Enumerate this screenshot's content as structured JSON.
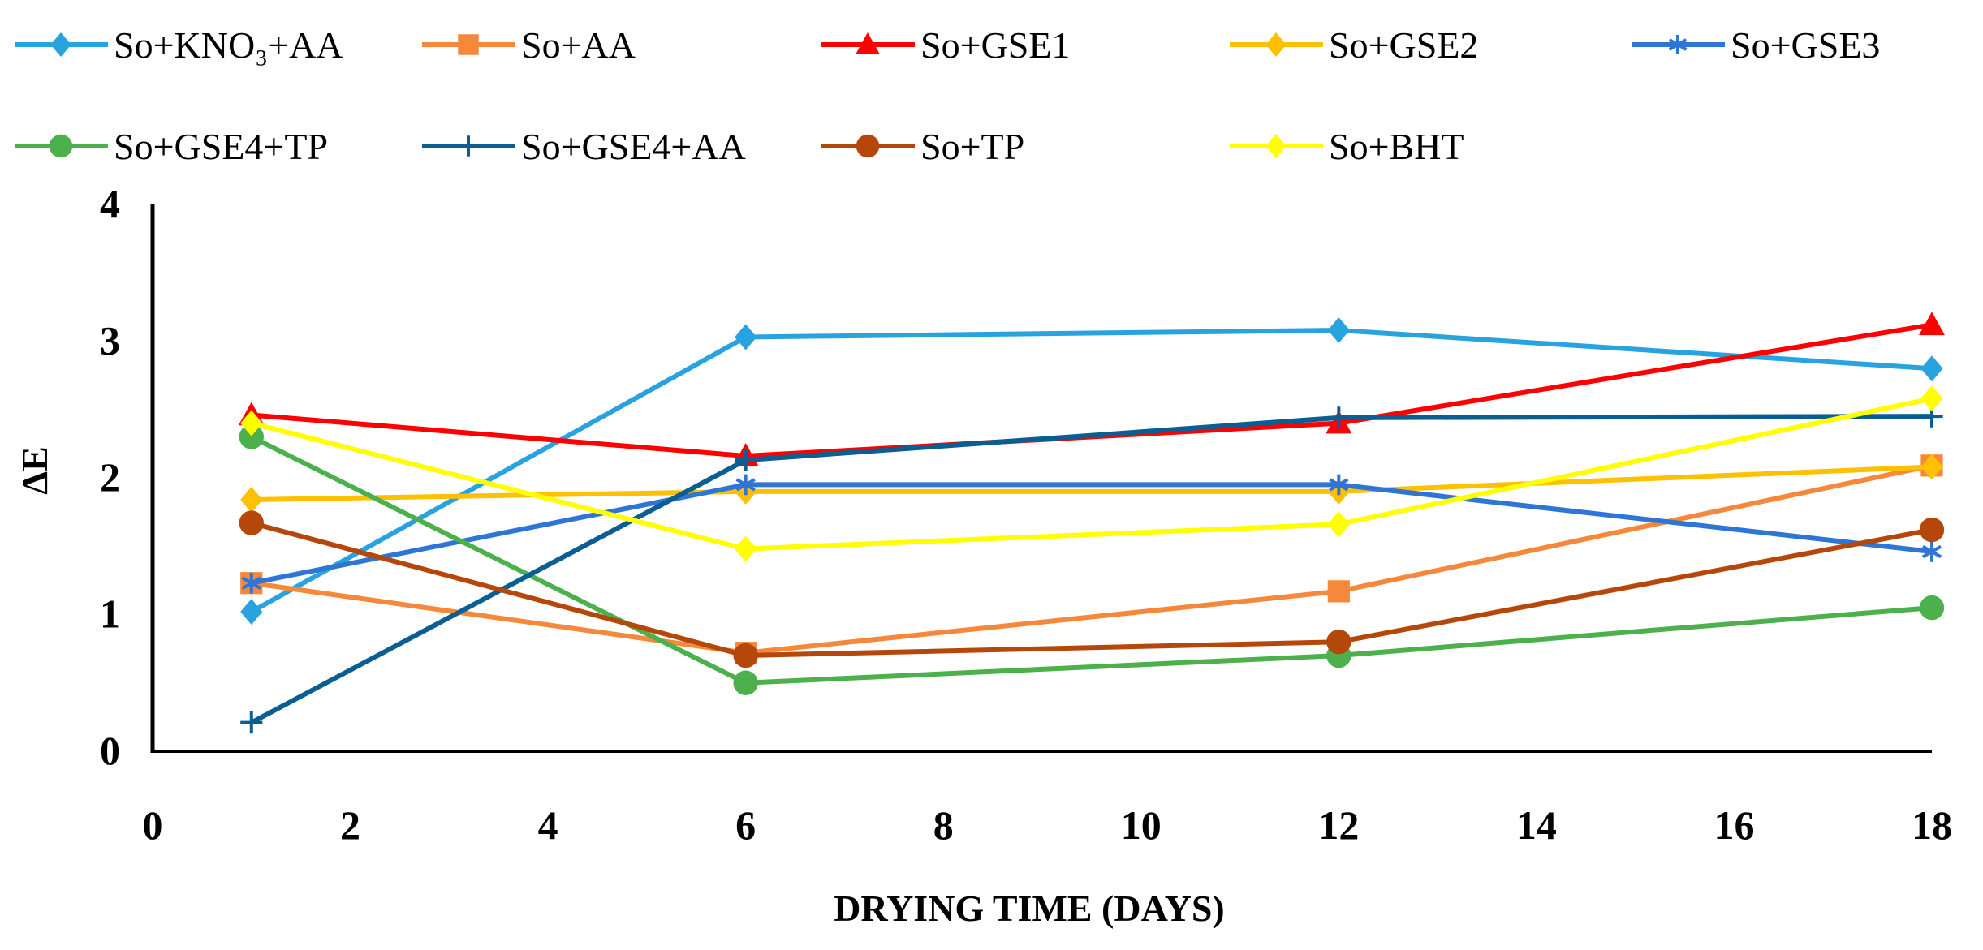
{
  "chart_data": {
    "type": "line",
    "title": "",
    "xlabel": "DRYING TIME (DAYS)",
    "ylabel": "ΔE",
    "xlim": [
      0,
      18
    ],
    "ylim": [
      0,
      4
    ],
    "xticks": [
      0,
      2,
      4,
      6,
      8,
      10,
      12,
      14,
      16,
      18
    ],
    "yticks": [
      0,
      1,
      2,
      3,
      4
    ],
    "grid": false,
    "legend_position": "top",
    "x": [
      1,
      6,
      12,
      18
    ],
    "series": [
      {
        "name": "So+KNO3+AA",
        "display_name": "So+KNO₃+AA",
        "color": "#29A3E0",
        "marker": "diamond",
        "values": [
          1.02,
          3.03,
          3.08,
          2.8
        ]
      },
      {
        "name": "So+AA",
        "color": "#F5883A",
        "marker": "square",
        "values": [
          1.23,
          0.72,
          1.17,
          2.09
        ]
      },
      {
        "name": "So+GSE1",
        "color": "#FF0000",
        "marker": "triangle",
        "values": [
          2.46,
          2.16,
          2.4,
          3.12
        ]
      },
      {
        "name": "So+GSE2",
        "color": "#FFC000",
        "marker": "diamond",
        "values": [
          1.84,
          1.9,
          1.9,
          2.08
        ]
      },
      {
        "name": "So+GSE3",
        "color": "#2E75D6",
        "marker": "asterisk",
        "values": [
          1.23,
          1.95,
          1.95,
          1.46
        ]
      },
      {
        "name": "So+GSE4+TP",
        "color": "#4CB04C",
        "marker": "circle",
        "values": [
          2.3,
          0.5,
          0.7,
          1.05
        ]
      },
      {
        "name": "So+GSE4+AA",
        "color": "#0B5E91",
        "marker": "plus",
        "values": [
          0.21,
          2.13,
          2.44,
          2.45
        ]
      },
      {
        "name": "So+TP",
        "color": "#B5470B",
        "marker": "circle",
        "values": [
          1.67,
          0.7,
          0.8,
          1.62
        ]
      },
      {
        "name": "So+BHT",
        "color": "#FFFF00",
        "marker": "diamond",
        "values": [
          2.4,
          1.48,
          1.66,
          2.58
        ]
      }
    ]
  }
}
